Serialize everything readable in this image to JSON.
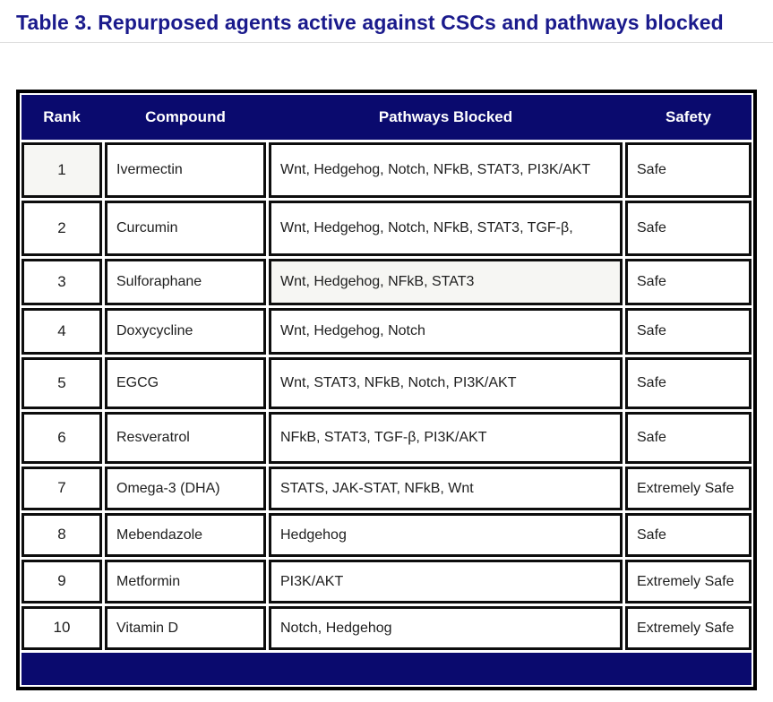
{
  "title": "Table 3. Repurposed agents active against CSCs and pathways blocked",
  "colors": {
    "navy": "#0a0a6e",
    "title": "#1a1a8c",
    "ink": "#202020"
  },
  "table": {
    "columns": [
      "Rank",
      "Compound",
      "Pathways Blocked",
      "Safety"
    ],
    "rows": [
      {
        "rank": "1",
        "compound": "Ivermectin",
        "pathways": "Wnt, Hedgehog, Notch, NFkB, STAT3, PI3K/AKT",
        "safety": "Safe"
      },
      {
        "rank": "2",
        "compound": "Curcumin",
        "pathways": "Wnt, Hedgehog, Notch, NFkB, STAT3, TGF-β,",
        "safety": "Safe"
      },
      {
        "rank": "3",
        "compound": "Sulforaphane",
        "pathways": "Wnt, Hedgehog, NFkB, STAT3",
        "safety": "Safe"
      },
      {
        "rank": "4",
        "compound": "Doxycycline",
        "pathways": "Wnt, Hedgehog, Notch",
        "safety": "Safe"
      },
      {
        "rank": "5",
        "compound": "EGCG",
        "pathways": "Wnt, STAT3, NFkB, Notch, PI3K/AKT",
        "safety": "Safe"
      },
      {
        "rank": "6",
        "compound": "Resveratrol",
        "pathways": "NFkB, STAT3, TGF-β, PI3K/AKT",
        "safety": "Safe"
      },
      {
        "rank": "7",
        "compound": "Omega-3 (DHA)",
        "pathways": "STATS, JAK-STAT, NFkB, Wnt",
        "safety": "Extremely Safe"
      },
      {
        "rank": "8",
        "compound": "Mebendazole",
        "pathways": "Hedgehog",
        "safety": "Safe"
      },
      {
        "rank": "9",
        "compound": "Metformin",
        "pathways": "PI3K/AKT",
        "safety": "Extremely Safe"
      },
      {
        "rank": "10",
        "compound": "Vitamin D",
        "pathways": "Notch, Hedgehog",
        "safety": "Extremely Safe"
      }
    ]
  }
}
